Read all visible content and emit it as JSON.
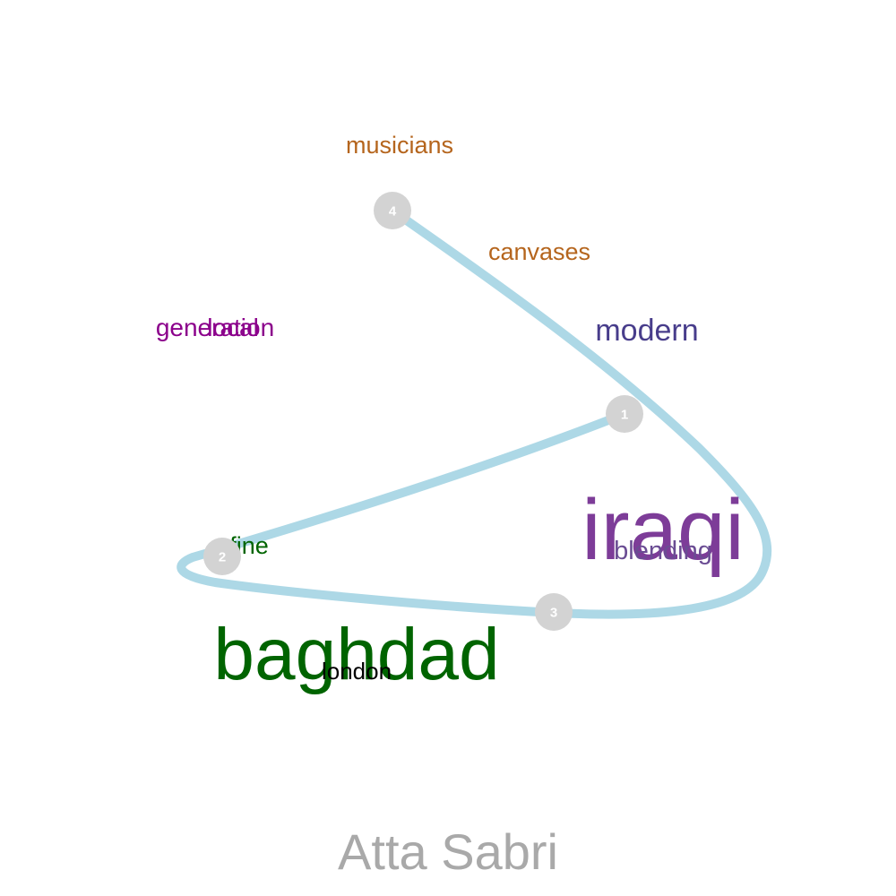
{
  "title": "Atta Sabri",
  "colors": {
    "path": "#add8e6",
    "node": "#d3d3d3",
    "node_text": "#ffffff",
    "title": "#a9a9a9"
  },
  "nodes": [
    {
      "id": "node-1",
      "label": "1"
    },
    {
      "id": "node-2",
      "label": "2"
    },
    {
      "id": "node-3",
      "label": "3"
    },
    {
      "id": "node-4",
      "label": "4"
    }
  ],
  "words": [
    {
      "id": "word-musicians",
      "text": "musicians",
      "color": "#b5651d"
    },
    {
      "id": "word-canvases",
      "text": "canvases",
      "color": "#b5651d"
    },
    {
      "id": "word-modern",
      "text": "modern",
      "color": "#483d8b"
    },
    {
      "id": "word-generation",
      "text": "generation",
      "color": "#8b008b"
    },
    {
      "id": "word-local",
      "text": "local",
      "color": "#8b008b"
    },
    {
      "id": "word-iraqi",
      "text": "iraqi",
      "color": "#7d3c98"
    },
    {
      "id": "word-blending",
      "text": "blending",
      "color": "#6a4c93"
    },
    {
      "id": "word-fine",
      "text": "fine",
      "color": "#006400"
    },
    {
      "id": "word-baghdad",
      "text": "baghdad",
      "color": "#006400"
    },
    {
      "id": "word-london",
      "text": "london",
      "color": "#000000"
    }
  ]
}
